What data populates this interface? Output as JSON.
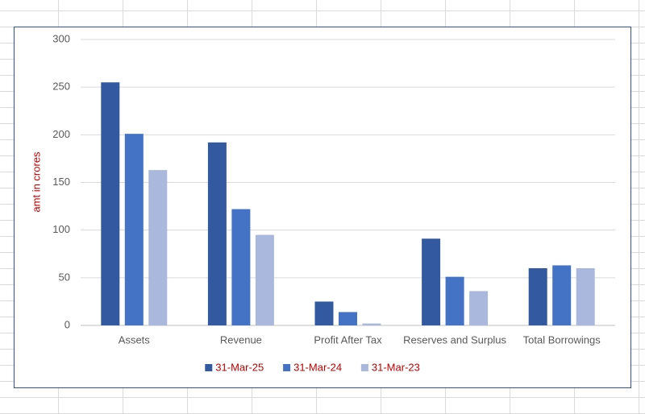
{
  "chart_data": {
    "type": "bar",
    "y_label": "amt in crores",
    "categories": [
      "Assets",
      "Revenue",
      "Profit After Tax",
      "Reserves and Surplus",
      "Total Borrowings"
    ],
    "series": [
      {
        "name": "31-Mar-25",
        "color": "#335aa1",
        "values": [
          255,
          192,
          25,
          91,
          60
        ]
      },
      {
        "name": "31-Mar-24",
        "color": "#4472c4",
        "values": [
          201,
          122,
          14,
          51,
          63
        ]
      },
      {
        "name": "31-Mar-23",
        "color": "#a9b8dc",
        "values": [
          163,
          95,
          2,
          36,
          60
        ]
      }
    ],
    "ylim": [
      0,
      300
    ],
    "yticks": [
      0,
      50,
      100,
      150,
      200,
      250,
      300
    ],
    "grid": true,
    "legend": "bottom",
    "legend_text_color": "#c00000",
    "y_label_color": "#c00000"
  }
}
